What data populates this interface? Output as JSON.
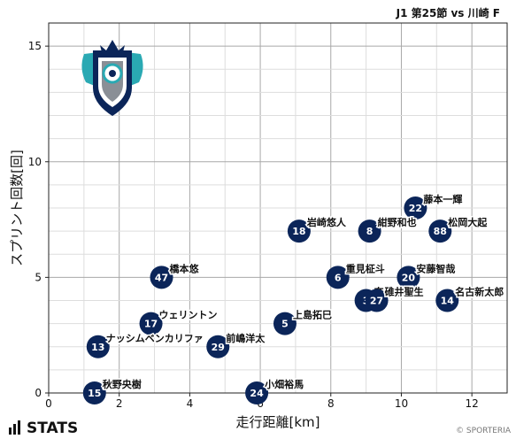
{
  "chart_data": {
    "type": "scatter",
    "title": "J1 第25節 vs 川崎 F",
    "xlabel": "走行距離[km]",
    "ylabel": "スプリント回数[回]",
    "xlim": [
      0,
      13
    ],
    "ylim": [
      0,
      16
    ],
    "xticks": [
      0,
      2,
      4,
      6,
      8,
      10,
      12
    ],
    "yticks": [
      0,
      5,
      10,
      15
    ],
    "grid": true,
    "marker_color": "#0b2559",
    "points": [
      {
        "number": "22",
        "name": "藤本一輝",
        "x": 10.4,
        "y": 8
      },
      {
        "number": "18",
        "name": "岩崎悠人",
        "x": 7.1,
        "y": 7
      },
      {
        "number": "8",
        "name": "紺野和也",
        "x": 9.1,
        "y": 7
      },
      {
        "number": "88",
        "name": "松岡大起",
        "x": 11.1,
        "y": 7
      },
      {
        "number": "47",
        "name": "橋本悠",
        "x": 3.2,
        "y": 5
      },
      {
        "number": "6",
        "name": "重見柾斗",
        "x": 8.2,
        "y": 5
      },
      {
        "number": "20",
        "name": "安藤智哉",
        "x": 10.2,
        "y": 5
      },
      {
        "number": "3",
        "name": "奈良竜樹",
        "x": 9.0,
        "y": 4
      },
      {
        "number": "27",
        "name": "碓井聖生",
        "x": 9.3,
        "y": 4
      },
      {
        "number": "14",
        "name": "名古新太郎",
        "x": 11.3,
        "y": 4
      },
      {
        "number": "17",
        "name": "ウェリントン",
        "x": 2.9,
        "y": 3
      },
      {
        "number": "5",
        "name": "上島拓巳",
        "x": 6.7,
        "y": 3
      },
      {
        "number": "13",
        "name": "ナッシムベンカリファ",
        "x": 1.4,
        "y": 2
      },
      {
        "number": "29",
        "name": "前嶋洋太",
        "x": 4.8,
        "y": 2
      },
      {
        "number": "15",
        "name": "秋野央樹",
        "x": 1.3,
        "y": 0
      },
      {
        "number": "24",
        "name": "小畑裕馬",
        "x": 5.9,
        "y": 0
      }
    ]
  },
  "logo": {
    "name": "avispa-fukuoka-crest-logo"
  },
  "footer": {
    "brand": "STATS",
    "credit": "© SPORTERIA"
  }
}
